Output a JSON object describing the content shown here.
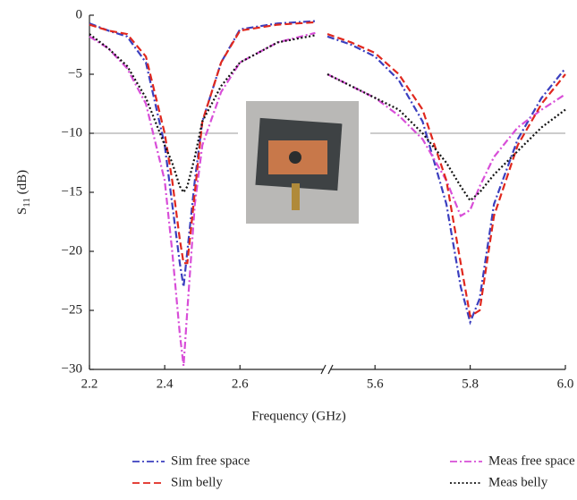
{
  "chart_data": {
    "type": "line",
    "ylabel": {
      "main": "S",
      "sub": "11",
      "unit": "(dB)"
    },
    "xlabel": "Frequency (GHz)",
    "ylim": [
      -30,
      0
    ],
    "yticks": [
      0,
      {
        "value": -5,
        "label": "−5"
      },
      {
        "value": -10,
        "label": "−10"
      },
      {
        "value": -15,
        "label": "−15"
      },
      {
        "value": -20,
        "label": "−20"
      },
      {
        "value": -25,
        "label": "−25"
      },
      {
        "value": -30,
        "label": "−30"
      }
    ],
    "segments": [
      {
        "xlim": [
          2.2,
          2.83
        ],
        "xticks": [
          2.2,
          2.4,
          2.6
        ]
      },
      {
        "xlim": [
          5.5,
          6.0
        ],
        "xticks": [
          5.6,
          5.8,
          {
            "value": 6,
            "label": "6.0"
          }
        ]
      }
    ],
    "threshold": -10,
    "x": [
      2.2,
      2.25,
      2.3,
      2.35,
      2.4,
      2.42,
      2.44,
      2.45,
      2.46,
      2.48,
      2.5,
      2.55,
      2.6,
      2.7,
      2.8,
      5.5,
      5.55,
      5.6,
      5.65,
      5.7,
      5.75,
      5.78,
      5.8,
      5.82,
      5.85,
      5.9,
      5.95,
      6.0
    ],
    "series": [
      {
        "name": "Sim free space",
        "color": "#3b3fbf",
        "dash": "8,3,2,3",
        "values": [
          -0.7,
          -1.3,
          -1.8,
          -4,
          -11,
          -16,
          -21,
          -23,
          -20,
          -14,
          -9,
          -4,
          -1.2,
          -0.7,
          -0.5,
          -1.8,
          -2.5,
          -3.5,
          -5.5,
          -9,
          -16,
          -23,
          -26,
          -24,
          -16,
          -10.5,
          -7,
          -4.5
        ]
      },
      {
        "name": "Meas free space",
        "color": "#d84ed8",
        "dash": "8,3,2,3",
        "values": [
          -1.8,
          -2.8,
          -4.5,
          -7.5,
          -14,
          -20,
          -27,
          -29.7,
          -25,
          -16,
          -11,
          -6.5,
          -4,
          -2.3,
          -1.5,
          -5,
          -6,
          -7,
          -8.5,
          -10.5,
          -14,
          -17,
          -16.5,
          -14.5,
          -12,
          -9.5,
          -8,
          -6.7
        ]
      },
      {
        "name": "Sim belly",
        "color": "#e0281e",
        "dash": "8,4",
        "values": [
          -0.8,
          -1.3,
          -1.6,
          -3.5,
          -10,
          -14,
          -19,
          -21,
          -21,
          -15,
          -9,
          -4,
          -1.3,
          -0.8,
          -0.6,
          -1.6,
          -2.3,
          -3.2,
          -5,
          -8,
          -14,
          -21,
          -25.5,
          -25,
          -17,
          -11,
          -7.5,
          -5
        ]
      },
      {
        "name": "Meas belly",
        "color": "#111111",
        "dash": "2,2.5",
        "values": [
          -1.6,
          -2.8,
          -4.3,
          -7,
          -11,
          -12.5,
          -14.5,
          -15,
          -14.5,
          -12,
          -9,
          -6,
          -4,
          -2.3,
          -1.7,
          -5,
          -6,
          -7,
          -8,
          -10,
          -12.5,
          -14.5,
          -15.7,
          -15,
          -13.5,
          -11.5,
          -9.5,
          -8
        ]
      }
    ]
  }
}
